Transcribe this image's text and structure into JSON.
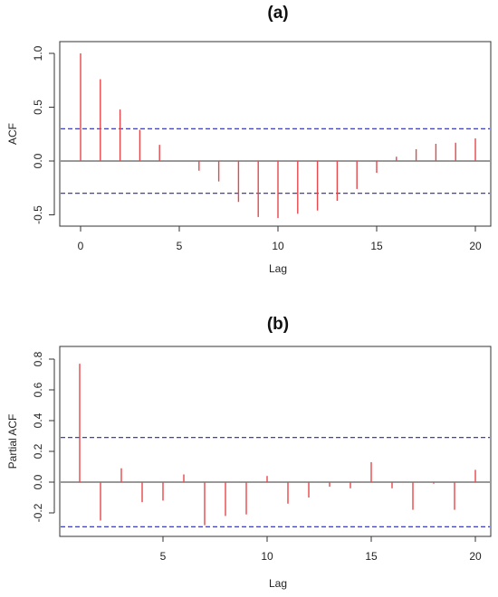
{
  "chart_data": [
    {
      "type": "bar",
      "title": "(a)",
      "xlabel": "Lag",
      "ylabel": "ACF",
      "x": [
        0,
        1,
        2,
        3,
        4,
        5,
        6,
        7,
        8,
        9,
        10,
        11,
        12,
        13,
        14,
        15,
        16,
        17,
        18,
        19,
        20
      ],
      "values": [
        1.0,
        0.76,
        0.48,
        0.29,
        0.15,
        0.0,
        -0.09,
        -0.19,
        -0.38,
        -0.52,
        -0.53,
        -0.49,
        -0.46,
        -0.37,
        -0.26,
        -0.11,
        0.04,
        0.11,
        0.16,
        0.17,
        0.21
      ],
      "xlim": [
        0,
        20
      ],
      "ylim": [
        -0.55,
        1.0
      ],
      "xticks": [
        "0",
        "5",
        "10",
        "15",
        "20"
      ],
      "yticks": [
        "-0.5",
        "0.0",
        "0.5",
        "1.0"
      ],
      "conf_limit": 0.3,
      "grid": false,
      "colors": {
        "spike": "#e8474b",
        "conf": "#2323c8"
      }
    },
    {
      "type": "bar",
      "title": "(b)",
      "xlabel": "Lag",
      "ylabel": "Partial ACF",
      "x": [
        1,
        2,
        3,
        4,
        5,
        6,
        7,
        8,
        9,
        10,
        11,
        12,
        13,
        14,
        15,
        16,
        17,
        18,
        19,
        20
      ],
      "values": [
        0.77,
        -0.25,
        0.09,
        -0.13,
        -0.12,
        0.05,
        -0.28,
        -0.22,
        -0.21,
        0.04,
        -0.14,
        -0.1,
        -0.03,
        -0.04,
        0.13,
        -0.04,
        -0.18,
        -0.01,
        -0.18,
        0.08
      ],
      "xlim": [
        1,
        20
      ],
      "ylim": [
        -0.3,
        0.8
      ],
      "xticks": [
        "5",
        "10",
        "15",
        "20"
      ],
      "yticks": [
        "-0.2",
        "0.0",
        "0.2",
        "0.4",
        "0.6",
        "0.8"
      ],
      "conf_limit": 0.29,
      "grid": false,
      "colors": {
        "spike": "#e8474b",
        "conf": "#2323c8"
      }
    }
  ]
}
